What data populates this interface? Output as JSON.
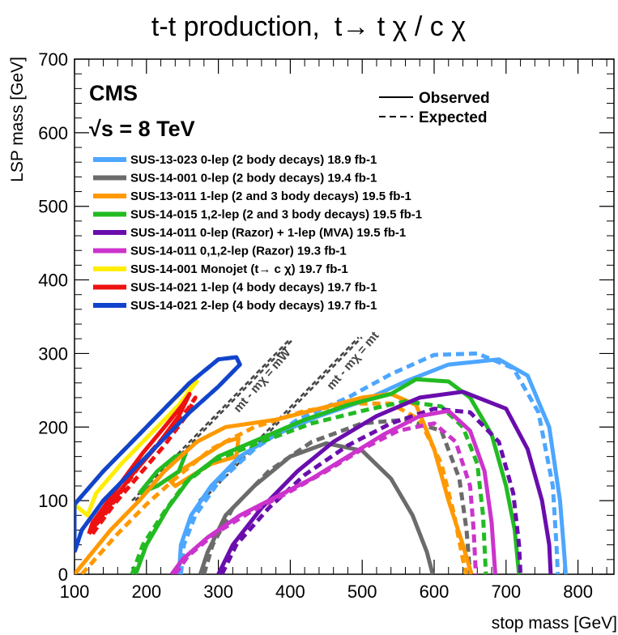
{
  "chart_data": {
    "type": "line",
    "title": "t̃-t̃ production,  t̃→ t χ̃ⁱ₁ / c χ̃ⁱ₁",
    "title_parts": {
      "production": "t-t production,",
      "decay": "t→ t χ / c χ"
    },
    "xlabel": "stop mass [GeV]",
    "ylabel": "LSP mass [GeV]",
    "xlim": [
      100,
      850
    ],
    "ylim": [
      0,
      700
    ],
    "xticks": [
      "100",
      "200",
      "300",
      "400",
      "500",
      "600",
      "700",
      "800"
    ],
    "yticks": [
      "0",
      "100",
      "200",
      "300",
      "400",
      "500",
      "600",
      "700"
    ],
    "experiment": "CMS",
    "energy": "√s = 8 TeV",
    "style_legend": {
      "observed": "Observed",
      "expected": "Expected"
    },
    "diagonals": [
      {
        "label": "mt - mχ = mW",
        "offset": 80
      },
      {
        "label": "mt - mχ = mt",
        "offset": 173
      }
    ],
    "series": [
      {
        "name": "SUS-13-023 0-lep (2 body decays) 18.9 fb-1",
        "color": "#4da6ff",
        "observed": [
          [
            245,
            0
          ],
          [
            248,
            40
          ],
          [
            262,
            80
          ],
          [
            290,
            120
          ],
          [
            330,
            160
          ],
          [
            380,
            190
          ],
          [
            440,
            215
          ],
          [
            500,
            235
          ],
          [
            560,
            262
          ],
          [
            620,
            285
          ],
          [
            690,
            292
          ],
          [
            730,
            270
          ],
          [
            760,
            200
          ],
          [
            775,
            100
          ],
          [
            780,
            40
          ],
          [
            783,
            0
          ]
        ],
        "expected": [
          [
            248,
            0
          ],
          [
            252,
            40
          ],
          [
            268,
            80
          ],
          [
            300,
            125
          ],
          [
            350,
            170
          ],
          [
            410,
            210
          ],
          [
            480,
            240
          ],
          [
            540,
            272
          ],
          [
            600,
            298
          ],
          [
            660,
            300
          ],
          [
            710,
            280
          ],
          [
            745,
            220
          ],
          [
            765,
            120
          ],
          [
            770,
            40
          ],
          [
            772,
            0
          ]
        ]
      },
      {
        "name": "SUS-14-001 0-lep (2 body decays) 19.4 fb-1",
        "color": "#6b6b6b",
        "observed": [
          [
            275,
            0
          ],
          [
            285,
            30
          ],
          [
            310,
            80
          ],
          [
            350,
            120
          ],
          [
            400,
            160
          ],
          [
            450,
            178
          ],
          [
            500,
            168
          ],
          [
            540,
            130
          ],
          [
            570,
            80
          ],
          [
            590,
            30
          ],
          [
            598,
            0
          ]
        ],
        "expected": [
          [
            280,
            0
          ],
          [
            292,
            40
          ],
          [
            320,
            90
          ],
          [
            370,
            140
          ],
          [
            430,
            180
          ],
          [
            500,
            205
          ],
          [
            560,
            210
          ],
          [
            610,
            195
          ],
          [
            635,
            130
          ],
          [
            645,
            60
          ],
          [
            650,
            0
          ]
        ]
      },
      {
        "name": "SUS-13-011 1-lep (2 and 3 body decays) 19.5 fb-1",
        "color": "#ff9900",
        "observed": [
          [
            100,
            0
          ],
          [
            150,
            60
          ],
          [
            190,
            100
          ],
          [
            225,
            140
          ],
          [
            270,
            180
          ],
          [
            310,
            200
          ],
          [
            380,
            210
          ],
          [
            440,
            225
          ],
          [
            500,
            240
          ],
          [
            540,
            245
          ],
          [
            575,
            230
          ],
          [
            600,
            170
          ],
          [
            620,
            100
          ],
          [
            640,
            40
          ],
          [
            652,
            0
          ]
        ],
        "expected": [
          [
            110,
            0
          ],
          [
            160,
            55
          ],
          [
            200,
            95
          ],
          [
            240,
            130
          ],
          [
            290,
            170
          ],
          [
            350,
            200
          ],
          [
            420,
            222
          ],
          [
            490,
            232
          ],
          [
            540,
            232
          ],
          [
            580,
            210
          ],
          [
            610,
            150
          ],
          [
            628,
            80
          ],
          [
            640,
            20
          ],
          [
            645,
            0
          ]
        ]
      },
      {
        "name": "SUS-14-015 1,2-lep (2 and 3 body decays) 19.5 fb-1",
        "color": "#22bb22",
        "observed": [
          [
            185,
            0
          ],
          [
            200,
            40
          ],
          [
            230,
            90
          ],
          [
            260,
            130
          ],
          [
            300,
            160
          ],
          [
            360,
            185
          ],
          [
            420,
            210
          ],
          [
            480,
            230
          ],
          [
            540,
            245
          ],
          [
            575,
            265
          ],
          [
            620,
            262
          ],
          [
            650,
            240
          ],
          [
            680,
            190
          ],
          [
            700,
            120
          ],
          [
            712,
            60
          ],
          [
            718,
            0
          ]
        ],
        "expected": [
          [
            180,
            0
          ],
          [
            195,
            40
          ],
          [
            225,
            85
          ],
          [
            255,
            125
          ],
          [
            295,
            155
          ],
          [
            360,
            180
          ],
          [
            430,
            205
          ],
          [
            500,
            222
          ],
          [
            560,
            235
          ],
          [
            610,
            228
          ],
          [
            640,
            200
          ],
          [
            660,
            150
          ],
          [
            668,
            80
          ],
          [
            672,
            0
          ]
        ]
      },
      {
        "name": "SUS-14-011 0-lep (Razor) + 1-lep (MVA) 19.5 fb-1",
        "color": "#6a0dad",
        "observed": [
          [
            300,
            0
          ],
          [
            320,
            40
          ],
          [
            360,
            90
          ],
          [
            410,
            140
          ],
          [
            460,
            180
          ],
          [
            520,
            215
          ],
          [
            580,
            240
          ],
          [
            640,
            248
          ],
          [
            700,
            225
          ],
          [
            730,
            170
          ],
          [
            750,
            100
          ],
          [
            760,
            40
          ],
          [
            762,
            0
          ]
        ],
        "expected": [
          [
            305,
            0
          ],
          [
            325,
            40
          ],
          [
            370,
            90
          ],
          [
            420,
            135
          ],
          [
            480,
            175
          ],
          [
            540,
            205
          ],
          [
            600,
            225
          ],
          [
            650,
            220
          ],
          [
            690,
            180
          ],
          [
            710,
            110
          ],
          [
            718,
            40
          ],
          [
            720,
            0
          ]
        ]
      },
      {
        "name": "SUS-14-011 0,1,2-lep (Razor) 19.3 fb-1",
        "color": "#cc33cc",
        "observed": [
          [
            235,
            0
          ],
          [
            250,
            20
          ],
          [
            285,
            50
          ],
          [
            330,
            80
          ],
          [
            380,
            105
          ],
          [
            430,
            130
          ],
          [
            480,
            160
          ],
          [
            530,
            190
          ],
          [
            580,
            215
          ],
          [
            620,
            222
          ],
          [
            650,
            195
          ],
          [
            670,
            140
          ],
          [
            680,
            70
          ],
          [
            685,
            0
          ]
        ],
        "expected": [
          [
            240,
            0
          ],
          [
            258,
            25
          ],
          [
            295,
            55
          ],
          [
            345,
            85
          ],
          [
            395,
            110
          ],
          [
            450,
            140
          ],
          [
            500,
            170
          ],
          [
            550,
            195
          ],
          [
            600,
            205
          ],
          [
            630,
            180
          ],
          [
            650,
            120
          ],
          [
            655,
            60
          ],
          [
            658,
            0
          ]
        ]
      },
      {
        "name": "SUS-14-001 Monojet (t→ c χ) 19.7 fb-1",
        "color": "#ffee00",
        "observed": [
          [
            100,
            95
          ],
          [
            140,
            140
          ],
          [
            180,
            180
          ],
          [
            220,
            220
          ],
          [
            260,
            258
          ],
          [
            270,
            262
          ],
          [
            245,
            230
          ],
          [
            205,
            190
          ],
          [
            165,
            150
          ],
          [
            130,
            110
          ],
          [
            118,
            80
          ],
          [
            100,
            95
          ]
        ],
        "expected": [
          [
            100,
            95
          ],
          [
            140,
            140
          ],
          [
            180,
            180
          ],
          [
            220,
            220
          ],
          [
            260,
            258
          ],
          [
            270,
            262
          ],
          [
            245,
            230
          ],
          [
            205,
            190
          ],
          [
            165,
            150
          ],
          [
            130,
            110
          ],
          [
            118,
            80
          ],
          [
            100,
            95
          ]
        ]
      },
      {
        "name": "SUS-14-021 1-lep (4 body decays) 19.7 fb-1",
        "color": "#ee1111",
        "observed": [
          [
            120,
            55
          ],
          [
            150,
            95
          ],
          [
            180,
            135
          ],
          [
            215,
            175
          ],
          [
            245,
            215
          ],
          [
            260,
            245
          ],
          [
            250,
            230
          ],
          [
            225,
            200
          ],
          [
            195,
            165
          ],
          [
            165,
            125
          ],
          [
            140,
            90
          ],
          [
            125,
            70
          ],
          [
            120,
            55
          ]
        ],
        "expected": [
          [
            125,
            55
          ],
          [
            155,
            95
          ],
          [
            190,
            135
          ],
          [
            225,
            175
          ],
          [
            255,
            215
          ],
          [
            268,
            240
          ],
          [
            258,
            225
          ],
          [
            232,
            195
          ],
          [
            200,
            160
          ],
          [
            170,
            120
          ],
          [
            145,
            85
          ],
          [
            128,
            65
          ],
          [
            125,
            55
          ]
        ]
      },
      {
        "name": "SUS-14-021 2-lep (4 body decays) 19.7 fb-1",
        "color": "#1144cc",
        "observed": [
          [
            100,
            30
          ],
          [
            100,
            95
          ],
          [
            140,
            140
          ],
          [
            180,
            180
          ],
          [
            220,
            220
          ],
          [
            260,
            260
          ],
          [
            300,
            292
          ],
          [
            325,
            295
          ],
          [
            330,
            285
          ],
          [
            300,
            255
          ],
          [
            260,
            220
          ],
          [
            220,
            180
          ],
          [
            180,
            140
          ],
          [
            140,
            100
          ],
          [
            110,
            60
          ],
          [
            100,
            30
          ]
        ],
        "expected": [
          [
            100,
            30
          ],
          [
            100,
            95
          ],
          [
            140,
            140
          ],
          [
            180,
            180
          ],
          [
            220,
            220
          ],
          [
            260,
            260
          ],
          [
            300,
            292
          ],
          [
            325,
            295
          ],
          [
            330,
            285
          ],
          [
            300,
            255
          ],
          [
            260,
            220
          ],
          [
            220,
            180
          ],
          [
            180,
            140
          ],
          [
            140,
            100
          ],
          [
            110,
            60
          ],
          [
            100,
            30
          ]
        ]
      }
    ],
    "extra_contours": [
      {
        "color": "#ff9900",
        "style": "solid",
        "points": [
          [
            230,
            130
          ],
          [
            270,
            155
          ],
          [
            310,
            180
          ],
          [
            328,
            185
          ],
          [
            325,
            160
          ],
          [
            290,
            150
          ],
          [
            240,
            120
          ],
          [
            230,
            130
          ]
        ]
      },
      {
        "color": "#22bb22",
        "style": "solid",
        "points": [
          [
            190,
            110
          ],
          [
            215,
            140
          ],
          [
            240,
            160
          ],
          [
            255,
            165
          ],
          [
            245,
            140
          ],
          [
            215,
            120
          ],
          [
            190,
            110
          ]
        ]
      }
    ]
  }
}
